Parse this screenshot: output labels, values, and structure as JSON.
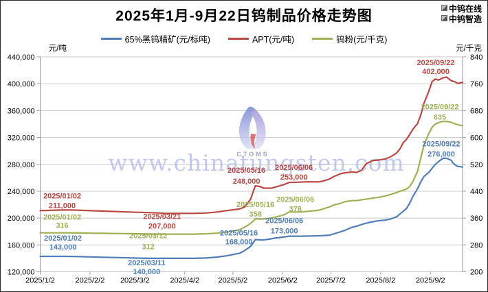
{
  "header": {
    "title": "2025年1月-9月22日钨制品价格走势图",
    "brand_lines": [
      "中钨在线",
      "中钨智造"
    ]
  },
  "axes": {
    "left_unit": "元/吨",
    "right_unit": "元/千克"
  },
  "watermark": {
    "url_text": "www.chinatungsten.com",
    "logo_text": "CTOMS"
  },
  "colors": {
    "wolframite_blue": "#4e7dba",
    "apt_red": "#bb4743",
    "powder_olive": "#9fb054",
    "gridline": "#c9c9c9",
    "axis": "#9a9a9a",
    "watermark": "#b4bce8"
  },
  "chart_data": {
    "type": "line",
    "title": "2025年1月-9月22日钨制品价格走势图",
    "grid": "horizontal",
    "legend_position": "top",
    "x_axis": {
      "start": "1/2",
      "end": "9/22",
      "tick_dates": [
        "1/2",
        "2/2",
        "3/2",
        "4/2",
        "5/2",
        "6/2",
        "7/2",
        "8/2",
        "9/2"
      ],
      "tick_labels": [
        "2025/1/2",
        "2025/2/2",
        "2025/3/2",
        "2025/4/2",
        "2025/5/2",
        "2025/6/2",
        "2025/7/2",
        "2025/8/2",
        "2025/9/2"
      ]
    },
    "left_axis": {
      "unit": "元/吨",
      "min": 120000,
      "max": 440000,
      "step": 40000,
      "tick_labels": [
        "440,000",
        "400,000",
        "360,000",
        "320,000",
        "280,000",
        "240,000",
        "200,000",
        "160,000",
        "120,000"
      ]
    },
    "right_axis": {
      "unit": "元/千克",
      "min": 200,
      "max": 840,
      "step": 80,
      "tick_labels": [
        "840",
        "760",
        "680",
        "600",
        "520",
        "440",
        "360",
        "280",
        "200"
      ]
    },
    "series": [
      {
        "name": "65%黑钨精矿(元/标吨)",
        "color": "#4e7dba",
        "axis": "left",
        "points": [
          [
            "1/2",
            143000
          ],
          [
            "1/10",
            143000
          ],
          [
            "1/17",
            143000
          ],
          [
            "1/24",
            142800
          ],
          [
            "2/2",
            142200
          ],
          [
            "2/10",
            141600
          ],
          [
            "2/18",
            141200
          ],
          [
            "2/26",
            140700
          ],
          [
            "3/5",
            140300
          ],
          [
            "3/11",
            140000
          ],
          [
            "3/20",
            140000
          ],
          [
            "3/28",
            140000
          ],
          [
            "4/7",
            140000
          ],
          [
            "4/15",
            140500
          ],
          [
            "4/22",
            141800
          ],
          [
            "4/28",
            143800
          ],
          [
            "5/6",
            147500
          ],
          [
            "5/9",
            151000
          ],
          [
            "5/13",
            158000
          ],
          [
            "5/15",
            164500
          ],
          [
            "5/16",
            168000
          ],
          [
            "5/20",
            167300
          ],
          [
            "5/23",
            168000
          ],
          [
            "5/28",
            170000
          ],
          [
            "6/3",
            172000
          ],
          [
            "6/6",
            173000
          ],
          [
            "6/12",
            173000
          ],
          [
            "6/19",
            173300
          ],
          [
            "6/26",
            173800
          ],
          [
            "7/1",
            174500
          ],
          [
            "7/4",
            176500
          ],
          [
            "7/8",
            179500
          ],
          [
            "7/11",
            182000
          ],
          [
            "7/15",
            186000
          ],
          [
            "7/18",
            188000
          ],
          [
            "7/22",
            191000
          ],
          [
            "7/25",
            193000
          ],
          [
            "7/29",
            195000
          ],
          [
            "8/1",
            196000
          ],
          [
            "8/5",
            197000
          ],
          [
            "8/8",
            198500
          ],
          [
            "8/12",
            202000
          ],
          [
            "8/14",
            206000
          ],
          [
            "8/18",
            214000
          ],
          [
            "8/20",
            222000
          ],
          [
            "8/22",
            232000
          ],
          [
            "8/25",
            244000
          ],
          [
            "8/27",
            254000
          ],
          [
            "8/29",
            262000
          ],
          [
            "9/1",
            268000
          ],
          [
            "9/3",
            274000
          ],
          [
            "9/5",
            280000
          ],
          [
            "9/8",
            286000
          ],
          [
            "9/10",
            289000
          ],
          [
            "9/12",
            289000
          ],
          [
            "9/15",
            286000
          ],
          [
            "9/16",
            282000
          ],
          [
            "9/18",
            278000
          ],
          [
            "9/19",
            277000
          ],
          [
            "9/22",
            276000
          ]
        ]
      },
      {
        "name": "APT(元/吨)",
        "color": "#bb4743",
        "axis": "left",
        "points": [
          [
            "1/2",
            211000
          ],
          [
            "1/8",
            211500
          ],
          [
            "1/15",
            212000
          ],
          [
            "1/22",
            212000
          ],
          [
            "1/28",
            211500
          ],
          [
            "2/5",
            210800
          ],
          [
            "2/12",
            210200
          ],
          [
            "2/19",
            209600
          ],
          [
            "2/26",
            209000
          ],
          [
            "3/5",
            208500
          ],
          [
            "3/12",
            208000
          ],
          [
            "3/18",
            207500
          ],
          [
            "3/21",
            207000
          ],
          [
            "3/28",
            207000
          ],
          [
            "4/7",
            207000
          ],
          [
            "4/15",
            207500
          ],
          [
            "4/22",
            209000
          ],
          [
            "4/28",
            211000
          ],
          [
            "5/6",
            213500
          ],
          [
            "5/9",
            216000
          ],
          [
            "5/13",
            228000
          ],
          [
            "5/15",
            242000
          ],
          [
            "5/16",
            248000
          ],
          [
            "5/19",
            247000
          ],
          [
            "5/21",
            244500
          ],
          [
            "5/26",
            244500
          ],
          [
            "5/29",
            246500
          ],
          [
            "6/3",
            250000
          ],
          [
            "6/6",
            253000
          ],
          [
            "6/12",
            253500
          ],
          [
            "6/18",
            254000
          ],
          [
            "6/24",
            253800
          ],
          [
            "6/27",
            255000
          ],
          [
            "7/1",
            258000
          ],
          [
            "7/4",
            262000
          ],
          [
            "7/8",
            266000
          ],
          [
            "7/11",
            267500
          ],
          [
            "7/15",
            268500
          ],
          [
            "7/18",
            268000
          ],
          [
            "7/21",
            271000
          ],
          [
            "7/24",
            281000
          ],
          [
            "7/28",
            285500
          ],
          [
            "8/1",
            286500
          ],
          [
            "8/5",
            288000
          ],
          [
            "8/8",
            291000
          ],
          [
            "8/12",
            297000
          ],
          [
            "8/14",
            303000
          ],
          [
            "8/16",
            312000
          ],
          [
            "8/18",
            317000
          ],
          [
            "8/20",
            324000
          ],
          [
            "8/22",
            332000
          ],
          [
            "8/25",
            341000
          ],
          [
            "8/27",
            354000
          ],
          [
            "8/29",
            371000
          ],
          [
            "9/1",
            389000
          ],
          [
            "9/3",
            403000
          ],
          [
            "9/5",
            407000
          ],
          [
            "9/7",
            405500
          ],
          [
            "9/10",
            409000
          ],
          [
            "9/12",
            410000
          ],
          [
            "9/15",
            404500
          ],
          [
            "9/17",
            403000
          ],
          [
            "9/19",
            400500
          ],
          [
            "9/22",
            402000
          ]
        ]
      },
      {
        "name": "钨粉(元/千克)",
        "color": "#9fb054",
        "axis": "right",
        "points": [
          [
            "1/2",
            316
          ],
          [
            "1/10",
            316
          ],
          [
            "1/17",
            316
          ],
          [
            "1/24",
            315.5
          ],
          [
            "2/2",
            315
          ],
          [
            "2/10",
            314.5
          ],
          [
            "2/18",
            314
          ],
          [
            "2/26",
            313.5
          ],
          [
            "3/5",
            313
          ],
          [
            "3/12",
            312
          ],
          [
            "3/20",
            312
          ],
          [
            "3/28",
            312
          ],
          [
            "4/7",
            312
          ],
          [
            "4/15",
            313
          ],
          [
            "4/22",
            315
          ],
          [
            "4/28",
            318
          ],
          [
            "5/6",
            325
          ],
          [
            "5/9",
            332
          ],
          [
            "5/13",
            344
          ],
          [
            "5/15",
            353
          ],
          [
            "5/16",
            358
          ],
          [
            "5/20",
            357
          ],
          [
            "5/23",
            358
          ],
          [
            "5/28",
            362
          ],
          [
            "6/3",
            370
          ],
          [
            "6/6",
            378
          ],
          [
            "6/12",
            378
          ],
          [
            "6/18",
            380
          ],
          [
            "6/24",
            383
          ],
          [
            "6/27",
            387
          ],
          [
            "7/1",
            393
          ],
          [
            "7/4",
            399
          ],
          [
            "7/8",
            404
          ],
          [
            "7/11",
            409
          ],
          [
            "7/15",
            412
          ],
          [
            "7/18",
            412
          ],
          [
            "7/22",
            415
          ],
          [
            "7/25",
            417
          ],
          [
            "7/29",
            420
          ],
          [
            "8/1",
            422
          ],
          [
            "8/5",
            426
          ],
          [
            "8/8",
            430
          ],
          [
            "8/12",
            436
          ],
          [
            "8/14",
            440
          ],
          [
            "8/18",
            446
          ],
          [
            "8/20",
            454
          ],
          [
            "8/22",
            468
          ],
          [
            "8/25",
            500
          ],
          [
            "8/27",
            540
          ],
          [
            "8/29",
            578
          ],
          [
            "9/1",
            612
          ],
          [
            "9/3",
            630
          ],
          [
            "9/5",
            640
          ],
          [
            "9/8",
            646
          ],
          [
            "9/10",
            648
          ],
          [
            "9/12",
            648
          ],
          [
            "9/15",
            645
          ],
          [
            "9/17",
            641
          ],
          [
            "9/19",
            638
          ],
          [
            "9/22",
            635
          ]
        ]
      }
    ],
    "annotations": [
      {
        "series": 1,
        "date": "1/2",
        "label_date": "2025/01/02",
        "label_value": "211,000"
      },
      {
        "series": 2,
        "date": "1/2",
        "label_date": "2025/01/02",
        "label_value": "316"
      },
      {
        "series": 0,
        "date": "1/2",
        "label_date": "2025/01/02",
        "label_value": "143,000"
      },
      {
        "series": 1,
        "date": "3/21",
        "label_date": "2025/03/21",
        "label_value": "207,000"
      },
      {
        "series": 2,
        "date": "3/12",
        "label_date": "2025/03/12",
        "label_value": "312"
      },
      {
        "series": 0,
        "date": "3/11",
        "label_date": "2025/03/11",
        "label_value": "140,000"
      },
      {
        "series": 1,
        "date": "5/16",
        "label_date": "2025/05/16",
        "label_value": "248,000"
      },
      {
        "series": 2,
        "date": "5/16",
        "label_date": "2025/05/16",
        "label_value": "358"
      },
      {
        "series": 0,
        "date": "5/16",
        "label_date": "2025/05/16",
        "label_value": "168,000"
      },
      {
        "series": 1,
        "date": "6/6",
        "label_date": "2025/06/06",
        "label_value": "253,000"
      },
      {
        "series": 2,
        "date": "6/6",
        "label_date": "2025/06/06",
        "label_value": "378"
      },
      {
        "series": 0,
        "date": "6/6",
        "label_date": "2025/06/06",
        "label_value": "173,000"
      },
      {
        "series": 1,
        "date": "9/22",
        "label_date": "2025/09/22",
        "label_value": "402,000"
      },
      {
        "series": 2,
        "date": "9/22",
        "label_date": "2025/09/22",
        "label_value": "635"
      },
      {
        "series": 0,
        "date": "9/22",
        "label_date": "2025/09/22",
        "label_value": "276,000"
      }
    ]
  }
}
